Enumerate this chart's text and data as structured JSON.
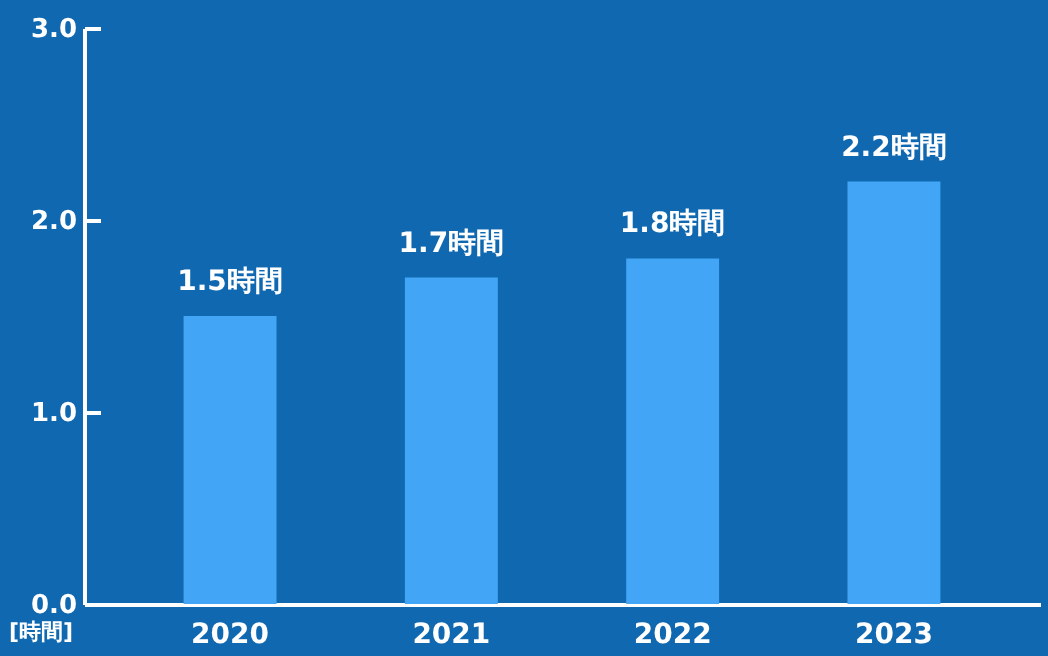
{
  "chart_data": {
    "type": "bar",
    "ylabel": "[時間]",
    "categories": [
      "2020",
      "2021",
      "2022",
      "2023"
    ],
    "values": [
      1.5,
      1.7,
      1.8,
      2.2
    ],
    "color": "#42a5f5",
    "value_labels": [
      "1.5時間",
      "1.7時間",
      "1.8時間",
      "2.2時間"
    ],
    "ylim": [
      0,
      3
    ],
    "yticks": [
      {
        "value": 0,
        "label": "0.0"
      },
      {
        "value": 1,
        "label": "1.0"
      },
      {
        "value": 2,
        "label": "2.0"
      },
      {
        "value": 3,
        "label": "3.0"
      }
    ],
    "grid": false
  }
}
